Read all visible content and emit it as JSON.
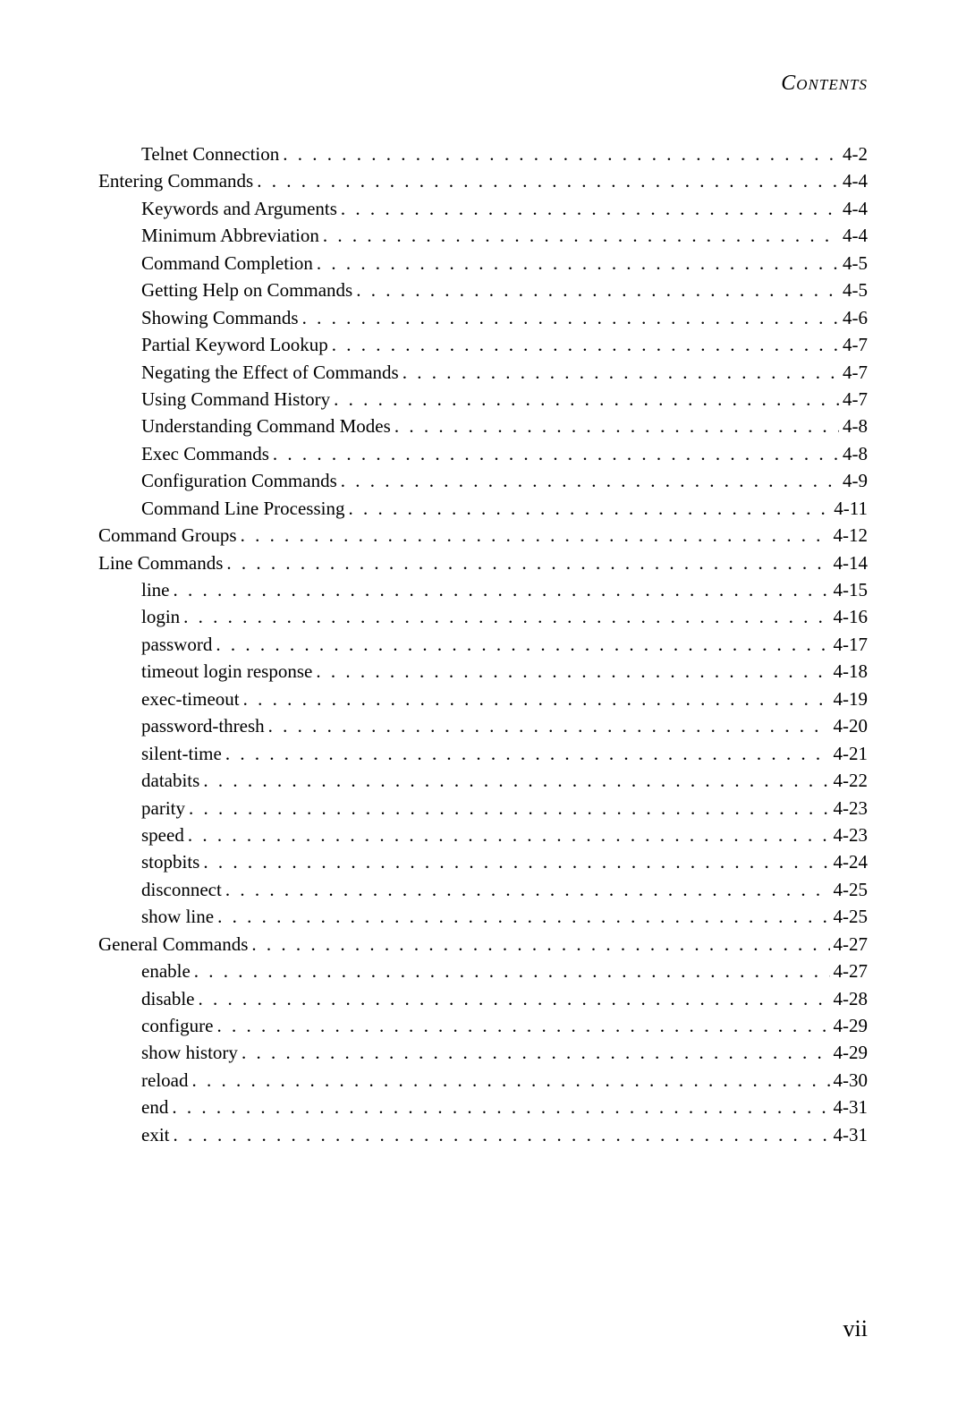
{
  "header": "Contents",
  "pageNumber": "vii",
  "dots": ". . . . . . . . . . . . . . . . . . . . . . . . . . . . . . . . . . . . . . . . . . . . . . . . . . . . . . . . . . . . . . . . . . . . . . . . . . . . . . . . . . . . . . . . . . . . . .",
  "entries": [
    {
      "label": "Telnet Connection",
      "page": "4-2",
      "indent": 2
    },
    {
      "label": "Entering Commands",
      "page": "4-4",
      "indent": 1
    },
    {
      "label": "Keywords and Arguments",
      "page": "4-4",
      "indent": 2
    },
    {
      "label": "Minimum Abbreviation",
      "page": "4-4",
      "indent": 2
    },
    {
      "label": "Command Completion",
      "page": "4-5",
      "indent": 2
    },
    {
      "label": "Getting Help on Commands",
      "page": "4-5",
      "indent": 2
    },
    {
      "label": "Showing Commands",
      "page": "4-6",
      "indent": 2
    },
    {
      "label": "Partial Keyword Lookup",
      "page": "4-7",
      "indent": 2
    },
    {
      "label": "Negating the Effect of Commands",
      "page": "4-7",
      "indent": 2
    },
    {
      "label": "Using Command History",
      "page": "4-7",
      "indent": 2
    },
    {
      "label": "Understanding Command Modes",
      "page": "4-8",
      "indent": 2
    },
    {
      "label": "Exec Commands",
      "page": "4-8",
      "indent": 2
    },
    {
      "label": "Configuration Commands",
      "page": "4-9",
      "indent": 2
    },
    {
      "label": "Command Line Processing",
      "page": "4-11",
      "indent": 2
    },
    {
      "label": "Command Groups",
      "page": "4-12",
      "indent": 1
    },
    {
      "label": "Line Commands",
      "page": "4-14",
      "indent": 1
    },
    {
      "label": "line",
      "page": "4-15",
      "indent": 2
    },
    {
      "label": "login",
      "page": "4-16",
      "indent": 2
    },
    {
      "label": "password",
      "page": "4-17",
      "indent": 2
    },
    {
      "label": "timeout login response",
      "page": "4-18",
      "indent": 2
    },
    {
      "label": "exec-timeout",
      "page": "4-19",
      "indent": 2
    },
    {
      "label": "password-thresh",
      "page": "4-20",
      "indent": 2
    },
    {
      "label": "silent-time",
      "page": "4-21",
      "indent": 2
    },
    {
      "label": "databits",
      "page": "4-22",
      "indent": 2
    },
    {
      "label": "parity",
      "page": "4-23",
      "indent": 2
    },
    {
      "label": "speed",
      "page": "4-23",
      "indent": 2
    },
    {
      "label": "stopbits",
      "page": "4-24",
      "indent": 2
    },
    {
      "label": "disconnect",
      "page": "4-25",
      "indent": 2
    },
    {
      "label": "show line",
      "page": "4-25",
      "indent": 2
    },
    {
      "label": "General Commands",
      "page": "4-27",
      "indent": 1
    },
    {
      "label": "enable",
      "page": "4-27",
      "indent": 2
    },
    {
      "label": "disable",
      "page": "4-28",
      "indent": 2
    },
    {
      "label": "configure",
      "page": "4-29",
      "indent": 2
    },
    {
      "label": "show history",
      "page": "4-29",
      "indent": 2
    },
    {
      "label": "reload",
      "page": "4-30",
      "indent": 2
    },
    {
      "label": "end",
      "page": "4-31",
      "indent": 2
    },
    {
      "label": "exit",
      "page": "4-31",
      "indent": 2
    }
  ]
}
